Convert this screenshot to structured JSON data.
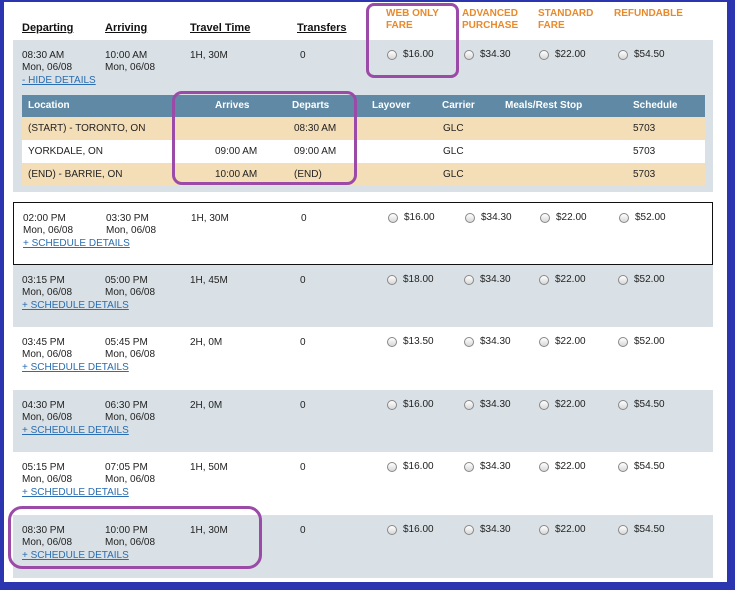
{
  "headers": {
    "departing": "Departing",
    "arriving": "Arriving",
    "travel_time": "Travel Time",
    "transfers": "Transfers",
    "fares": [
      "WEB ONLY FARE",
      "ADVANCED PURCHASE",
      "STANDARD FARE",
      "REFUNDABLE"
    ]
  },
  "detail": {
    "columns": [
      "Location",
      "Arrives",
      "Departs",
      "Layover",
      "Carrier",
      "Meals/Rest Stop",
      "Schedule"
    ],
    "rows": [
      {
        "location": "(START) - TORONTO, ON",
        "arrives": "",
        "departs": "08:30 AM",
        "layover": "",
        "carrier": "GLC",
        "meals": "",
        "schedule": "5703"
      },
      {
        "location": "YORKDALE, ON",
        "arrives": "09:00 AM",
        "departs": "09:00 AM",
        "layover": "",
        "carrier": "GLC",
        "meals": "",
        "schedule": "5703"
      },
      {
        "location": "(END) - BARRIE, ON",
        "arrives": "10:00 AM",
        "departs": "(END)",
        "layover": "",
        "carrier": "GLC",
        "meals": "",
        "schedule": "5703"
      }
    ]
  },
  "trips": [
    {
      "dep_time": "08:30 AM",
      "dep_date": "Mon, 06/08",
      "arr_time": "10:00 AM",
      "arr_date": "Mon, 06/08",
      "duration": "1H, 30M",
      "transfers": "0",
      "link": "- HIDE DETAILS",
      "fares": [
        "$16.00",
        "$34.30",
        "$22.00",
        "$54.50"
      ]
    },
    {
      "dep_time": "02:00 PM",
      "dep_date": "Mon, 06/08",
      "arr_time": "03:30 PM",
      "arr_date": "Mon, 06/08",
      "duration": "1H, 30M",
      "transfers": "0",
      "link": "+ SCHEDULE DETAILS",
      "fares": [
        "$16.00",
        "$34.30",
        "$22.00",
        "$52.00"
      ]
    },
    {
      "dep_time": "03:15 PM",
      "dep_date": "Mon, 06/08",
      "arr_time": "05:00 PM",
      "arr_date": "Mon, 06/08",
      "duration": "1H, 45M",
      "transfers": "0",
      "link": "+ SCHEDULE DETAILS",
      "fares": [
        "$18.00",
        "$34.30",
        "$22.00",
        "$52.00"
      ]
    },
    {
      "dep_time": "03:45 PM",
      "dep_date": "Mon, 06/08",
      "arr_time": "05:45 PM",
      "arr_date": "Mon, 06/08",
      "duration": "2H, 0M",
      "transfers": "0",
      "link": "+ SCHEDULE DETAILS",
      "fares": [
        "$13.50",
        "$34.30",
        "$22.00",
        "$52.00"
      ]
    },
    {
      "dep_time": "04:30 PM",
      "dep_date": "Mon, 06/08",
      "arr_time": "06:30 PM",
      "arr_date": "Mon, 06/08",
      "duration": "2H, 0M",
      "transfers": "0",
      "link": "+ SCHEDULE DETAILS",
      "fares": [
        "$16.00",
        "$34.30",
        "$22.00",
        "$54.50"
      ]
    },
    {
      "dep_time": "05:15 PM",
      "dep_date": "Mon, 06/08",
      "arr_time": "07:05 PM",
      "arr_date": "Mon, 06/08",
      "duration": "1H, 50M",
      "transfers": "0",
      "link": "+ SCHEDULE DETAILS",
      "fares": [
        "$16.00",
        "$34.30",
        "$22.00",
        "$54.50"
      ]
    },
    {
      "dep_time": "08:30 PM",
      "dep_date": "Mon, 06/08",
      "arr_time": "10:00 PM",
      "arr_date": "Mon, 06/08",
      "duration": "1H, 30M",
      "transfers": "0",
      "link": "+ SCHEDULE DETAILS",
      "fares": [
        "$16.00",
        "$34.30",
        "$22.00",
        "$54.50"
      ]
    }
  ]
}
